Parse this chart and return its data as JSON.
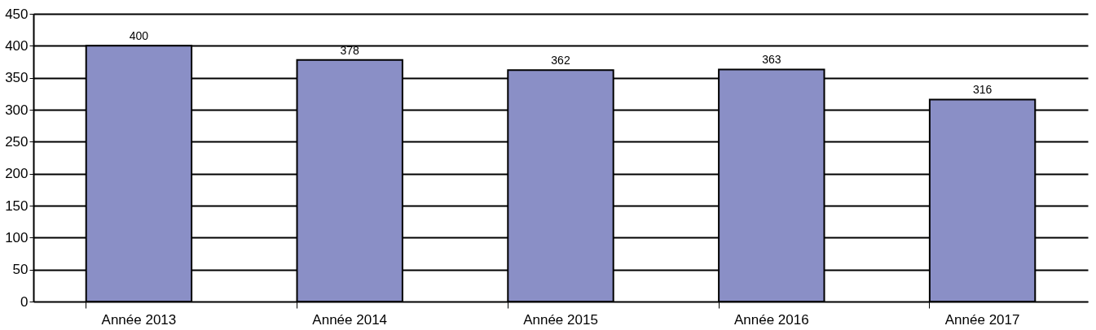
{
  "chart_data": {
    "type": "bar",
    "categories": [
      "Année 2013",
      "Année 2014",
      "Année 2015",
      "Année 2016",
      "Année 2017"
    ],
    "values": [
      400,
      378,
      362,
      363,
      316
    ],
    "color": "#8a8fc6",
    "data_labels": true,
    "ylim": [
      0,
      450
    ],
    "yticks": [
      0,
      50,
      100,
      150,
      200,
      250,
      300,
      350,
      400,
      450
    ],
    "grid": "y"
  }
}
